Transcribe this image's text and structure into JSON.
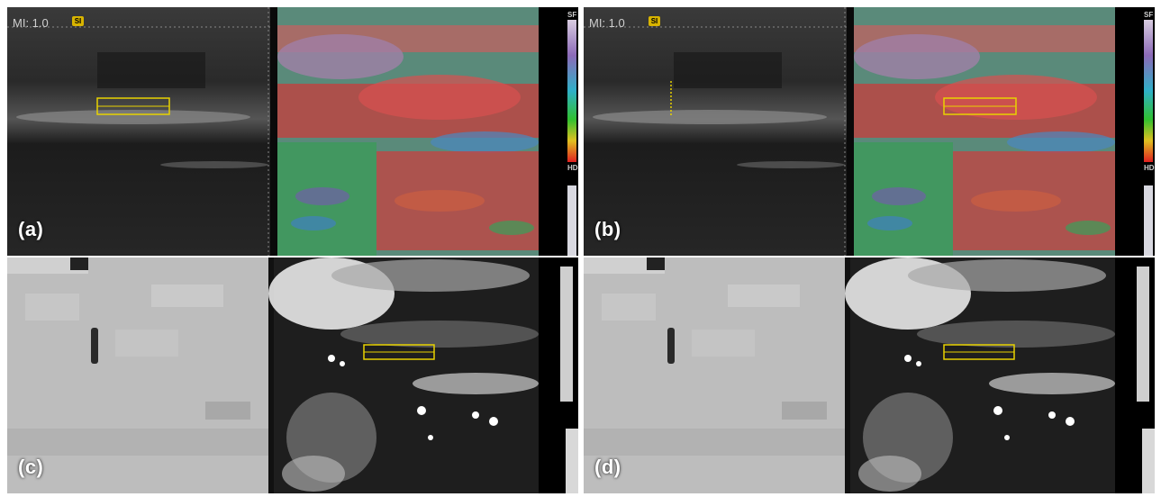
{
  "panels": [
    {
      "label": "(a)",
      "type": "elastography",
      "mi_text": "MI: 1.0",
      "badge": "SI",
      "scale_top": "SF",
      "scale_bottom": "HD"
    },
    {
      "label": "(b)",
      "type": "elastography",
      "mi_text": "MI: 1.0",
      "badge": "SI",
      "scale_top": "SF",
      "scale_bottom": "HD"
    },
    {
      "label": "(c)",
      "type": "phase-map"
    },
    {
      "label": "(d)",
      "type": "phase-map"
    }
  ],
  "colors": {
    "roi_box": "#e8d200",
    "background": "#ffffff",
    "label_text": "#ffffff"
  }
}
